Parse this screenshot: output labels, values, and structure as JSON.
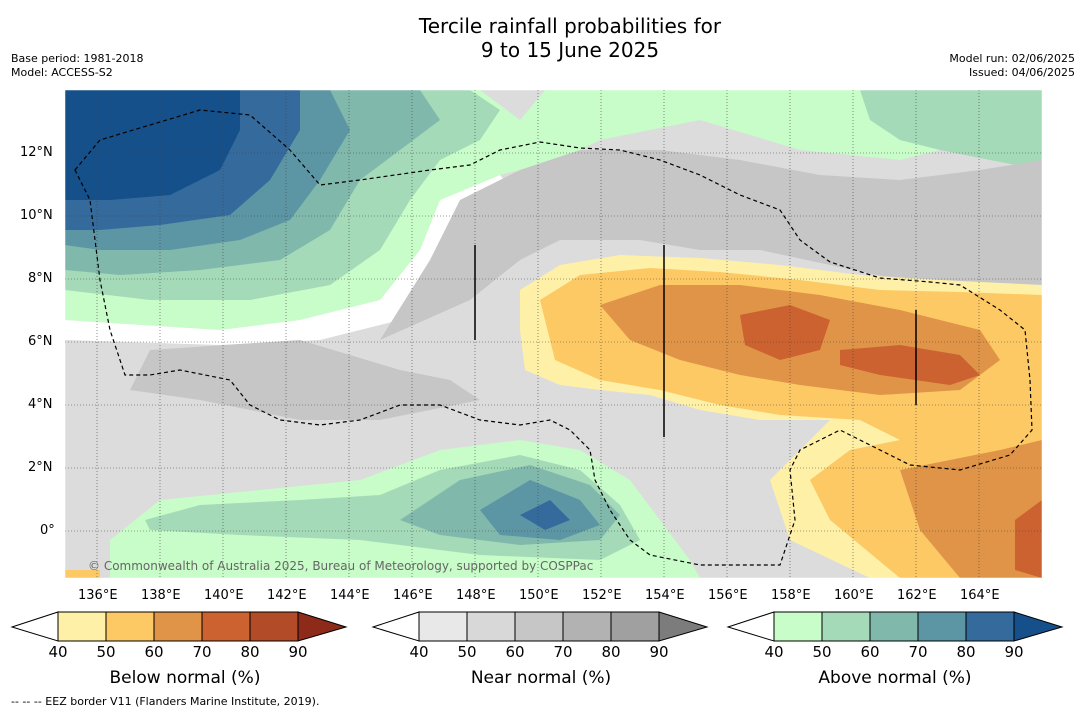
{
  "title_line1": "Tercile rainfall probabilities for",
  "title_line2": "9 to 15 June 2025",
  "base_period": "Base period: 1981-2018",
  "model": "Model: ACCESS-S2",
  "model_run": "Model run: 02/06/2025",
  "issued": "Issued: 04/06/2025",
  "copyright": "© Commonwealth of Australia 2025, Bureau of Meteorology, supported by COSPPac",
  "footnote": "--  --  -- EEZ border V11 (Flanders Marine Institute, 2019).",
  "map": {
    "lon_ticks": [
      "136°E",
      "138°E",
      "140°E",
      "142°E",
      "144°E",
      "146°E",
      "148°E",
      "150°E",
      "152°E",
      "154°E",
      "156°E",
      "158°E",
      "160°E",
      "162°E",
      "164°E"
    ],
    "lat_ticks": [
      "12°N",
      "10°N",
      "8°N",
      "6°N",
      "4°N",
      "2°N",
      "0°"
    ]
  },
  "colorbars": [
    {
      "label": "Below normal (%)",
      "ticks": [
        "40",
        "50",
        "60",
        "70",
        "80",
        "90"
      ],
      "colors": [
        "#fff0a8",
        "#fdc964",
        "#e09448",
        "#cc6230",
        "#b24b28",
        "#8e2a1a"
      ]
    },
    {
      "label": "Near normal (%)",
      "ticks": [
        "40",
        "50",
        "60",
        "70",
        "80",
        "90"
      ],
      "colors": [
        "#e8e8e8",
        "#d8d8d8",
        "#c6c6c6",
        "#b2b2b2",
        "#a0a0a0",
        "#7c7c7c"
      ]
    },
    {
      "label": "Above normal (%)",
      "ticks": [
        "40",
        "50",
        "60",
        "70",
        "80",
        "90"
      ],
      "colors": [
        "#c8fcc8",
        "#a4dab8",
        "#80b8ac",
        "#5c96a4",
        "#356a9c",
        "#15508a"
      ]
    }
  ]
}
